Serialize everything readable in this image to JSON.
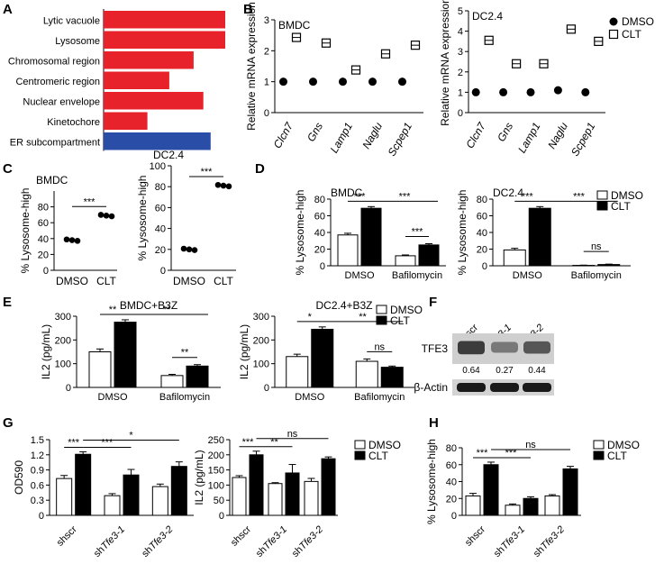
{
  "panel_labels": [
    "A",
    "B",
    "C",
    "D",
    "E",
    "F",
    "G",
    "H"
  ],
  "legend": {
    "dmso": "DMSO",
    "clt": "CLT"
  },
  "colors": {
    "red": "#e8222a",
    "blue": "#2a4ea8",
    "black": "#000000",
    "white": "#ffffff"
  },
  "chart_data": [
    {
      "id": "A",
      "type": "bar",
      "orientation": "horizontal",
      "categories": [
        "Lytic vacuole",
        "Lysosome",
        "Chromosomal region",
        "Centromeric region",
        "Nuclear envelope",
        "Kinetochore",
        "ER subcompartment"
      ],
      "values": [
        5.0,
        5.0,
        3.7,
        2.7,
        4.1,
        1.8,
        4.4
      ],
      "bar_colors": [
        "#e8222a",
        "#e8222a",
        "#e8222a",
        "#e8222a",
        "#e8222a",
        "#e8222a",
        "#2a4ea8"
      ]
    },
    {
      "id": "B1",
      "type": "scatter",
      "title": "BMDC",
      "ylabel": "Relative mRNA expression",
      "categories": [
        "Clcn7",
        "Gns",
        "Lamp1",
        "Naglu",
        "Scpep1"
      ],
      "ylim": [
        0,
        3
      ],
      "yticks": [
        "0",
        "1",
        "2",
        "3"
      ],
      "series": [
        {
          "name": "DMSO",
          "values": [
            1.0,
            1.0,
            1.0,
            1.0,
            1.0
          ]
        },
        {
          "name": "CLT",
          "values": [
            2.43,
            2.25,
            1.38,
            1.9,
            2.18
          ]
        }
      ]
    },
    {
      "id": "B2",
      "type": "scatter",
      "title": "DC2.4",
      "ylabel": "Relative mRNA expression",
      "categories": [
        "Clcn7",
        "Gns",
        "Lamp1",
        "Naglu",
        "Scpep1"
      ],
      "ylim": [
        0,
        5
      ],
      "yticks": [
        "0",
        "1",
        "2",
        "3",
        "4",
        "5"
      ],
      "series": [
        {
          "name": "DMSO",
          "values": [
            1.0,
            1.0,
            1.0,
            1.1,
            1.0
          ]
        },
        {
          "name": "CLT",
          "values": [
            3.55,
            2.4,
            2.4,
            4.1,
            3.5
          ]
        }
      ]
    },
    {
      "id": "C1",
      "type": "scatter",
      "title": "BMDC",
      "ylabel": "% Lysosome-high",
      "categories": [
        "DMSO",
        "CLT"
      ],
      "ylim": [
        0,
        100
      ],
      "yticks": [
        "0",
        "20",
        "40",
        "60",
        "80"
      ],
      "series": [
        {
          "name": "DMSO",
          "values": [
            38
          ]
        },
        {
          "name": "CLT",
          "values": [
            69
          ]
        }
      ],
      "significance": [
        {
          "label": "***"
        }
      ]
    },
    {
      "id": "C2",
      "type": "scatter",
      "title": "DC2.4",
      "ylabel": "% Lysosome-high",
      "categories": [
        "DMSO",
        "CLT"
      ],
      "ylim": [
        0,
        100
      ],
      "yticks": [
        "0",
        "20",
        "40",
        "60",
        "80",
        "100"
      ],
      "series": [
        {
          "name": "DMSO",
          "values": [
            20
          ]
        },
        {
          "name": "CLT",
          "values": [
            81
          ]
        }
      ],
      "significance": [
        {
          "label": "***"
        }
      ]
    },
    {
      "id": "D1",
      "type": "bar",
      "title": "BMDC",
      "ylabel": "% Lysosome-high",
      "categories": [
        "DMSO",
        "Bafilomycin"
      ],
      "ylim": [
        0,
        80
      ],
      "yticks": [
        "0",
        "20",
        "40",
        "60",
        "80"
      ],
      "series": [
        {
          "name": "DMSO",
          "values": [
            37,
            12
          ]
        },
        {
          "name": "CLT",
          "values": [
            69,
            25
          ]
        }
      ],
      "errors": {
        "DMSO": [
          2,
          1
        ],
        "CLT": [
          2,
          1.5
        ]
      },
      "significance": [
        {
          "label": "***"
        },
        {
          "label": "***"
        },
        {
          "label": "***"
        }
      ]
    },
    {
      "id": "D2",
      "type": "bar",
      "title": "DC2.4",
      "ylabel": "% Lysosome-high",
      "categories": [
        "DMSO",
        "Bafilomycin"
      ],
      "ylim": [
        0,
        80
      ],
      "yticks": [
        "0",
        "20",
        "40",
        "60",
        "80"
      ],
      "series": [
        {
          "name": "DMSO",
          "values": [
            19,
            0.5
          ]
        },
        {
          "name": "CLT",
          "values": [
            69,
            1.5
          ]
        }
      ],
      "errors": {
        "DMSO": [
          2,
          0.3
        ],
        "CLT": [
          2,
          0.5
        ]
      },
      "significance": [
        {
          "label": "***"
        },
        {
          "label": "***"
        },
        {
          "label": "ns"
        }
      ]
    },
    {
      "id": "E1",
      "type": "bar",
      "title": "BMDC+B3Z",
      "ylabel": "IL2 (pg/mL)",
      "categories": [
        "DMSO",
        "Bafilomycin"
      ],
      "ylim": [
        0,
        300
      ],
      "yticks": [
        "0",
        "100",
        "200",
        "300"
      ],
      "series": [
        {
          "name": "DMSO",
          "values": [
            150,
            50
          ]
        },
        {
          "name": "CLT",
          "values": [
            275,
            90
          ]
        }
      ],
      "errors": {
        "DMSO": [
          12,
          5
        ],
        "CLT": [
          10,
          6
        ]
      },
      "significance": [
        {
          "label": "**"
        },
        {
          "label": "**"
        },
        {
          "label": "**"
        }
      ]
    },
    {
      "id": "E2",
      "type": "bar",
      "title": "DC2.4+B3Z",
      "ylabel": "IL2 (pg/mL)",
      "categories": [
        "DMSO",
        "Bafilomycin"
      ],
      "ylim": [
        0,
        300
      ],
      "yticks": [
        "0",
        "100",
        "200",
        "300"
      ],
      "series": [
        {
          "name": "DMSO",
          "values": [
            130,
            110
          ]
        },
        {
          "name": "CLT",
          "values": [
            245,
            85
          ]
        }
      ],
      "errors": {
        "DMSO": [
          10,
          10
        ],
        "CLT": [
          10,
          5
        ]
      },
      "significance": [
        {
          "label": "*"
        },
        {
          "label": "**"
        },
        {
          "label": "ns"
        }
      ]
    },
    {
      "id": "G1",
      "type": "bar",
      "ylabel": "OD590",
      "categories": [
        "shscr",
        "shTfe3-1",
        "shTfe3-2"
      ],
      "ylim": [
        0,
        1.5
      ],
      "yticks": [
        "0",
        "0.3",
        "0.6",
        "0.9",
        "1.2",
        "1.5"
      ],
      "series": [
        {
          "name": "DMSO",
          "values": [
            0.73,
            0.39,
            0.57
          ]
        },
        {
          "name": "CLT",
          "values": [
            1.21,
            0.8,
            0.97
          ]
        }
      ],
      "errors": {
        "DMSO": [
          0.06,
          0.04,
          0.05
        ],
        "CLT": [
          0.05,
          0.11,
          0.09
        ]
      },
      "significance": [
        {
          "label": "***"
        },
        {
          "label": "***"
        },
        {
          "label": "*"
        }
      ]
    },
    {
      "id": "G2",
      "type": "bar",
      "ylabel": "IL2 (pg/mL)",
      "categories": [
        "shscr",
        "shTfe3-1",
        "shTfe3-2"
      ],
      "ylim": [
        0,
        250
      ],
      "yticks": [
        "0",
        "50",
        "100",
        "150",
        "200",
        "250"
      ],
      "series": [
        {
          "name": "DMSO",
          "values": [
            125,
            105,
            112
          ]
        },
        {
          "name": "CLT",
          "values": [
            200,
            140,
            187
          ]
        }
      ],
      "errors": {
        "DMSO": [
          6,
          3,
          10
        ],
        "CLT": [
          12,
          28,
          6
        ]
      },
      "significance": [
        {
          "label": "***"
        },
        {
          "label": "**"
        },
        {
          "label": "ns"
        }
      ]
    },
    {
      "id": "H",
      "type": "bar",
      "ylabel": "% Lysosome-high",
      "categories": [
        "shscr",
        "shTfe3-1",
        "shTfe3-2"
      ],
      "ylim": [
        0,
        80
      ],
      "yticks": [
        "0",
        "20",
        "40",
        "60",
        "80"
      ],
      "series": [
        {
          "name": "DMSO",
          "values": [
            23,
            12,
            23
          ]
        },
        {
          "name": "CLT",
          "values": [
            60,
            20,
            55
          ]
        }
      ],
      "errors": {
        "DMSO": [
          3,
          1.5,
          1.5
        ],
        "CLT": [
          3,
          2,
          3
        ]
      },
      "significance": [
        {
          "label": "***"
        },
        {
          "label": "***"
        },
        {
          "label": "ns"
        }
      ]
    }
  ],
  "blot": {
    "lanes": [
      "shscr",
      "shTfe3-1",
      "shTfe3-2"
    ],
    "proteins": [
      "TFE3",
      "β-Actin"
    ],
    "quant": [
      "0.64",
      "0.27",
      "0.44"
    ]
  }
}
